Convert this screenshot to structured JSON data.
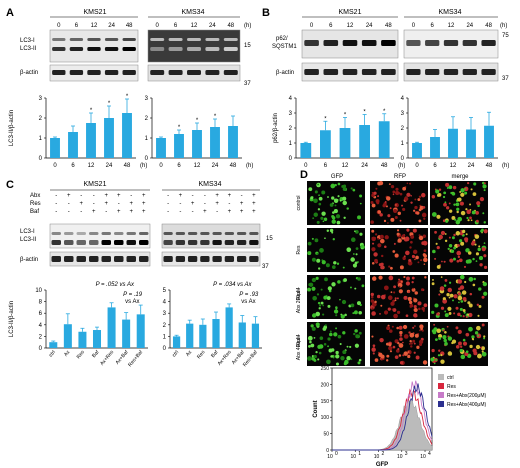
{
  "panel_labels": {
    "A": "A",
    "B": "B",
    "C": "C",
    "D": "D"
  },
  "colors": {
    "bar": "#29a9e0",
    "axis": "#000000",
    "res": "#d7263d",
    "abx200": "#c77bc8",
    "abx400": "#2b2f8f",
    "ctrl": "#bbbbbb"
  },
  "blots": {
    "A": {
      "cell1": "KMS21",
      "cell2": "KMS34",
      "lanes": [
        "0",
        "6",
        "12",
        "24",
        "48"
      ],
      "time_unit": "(h)",
      "band1": "LC3-I",
      "band2": "LC3-II",
      "band3": "β-actin",
      "mw1": "15",
      "mw2": "37"
    },
    "B": {
      "cell1": "KMS21",
      "cell2": "KMS34",
      "lanes": [
        "0",
        "6",
        "12",
        "24",
        "48"
      ],
      "time_unit": "(h)",
      "band1": "p62/",
      "band1b": "SQSTM1",
      "band2": "β-actin",
      "mw1": "75",
      "mw2": "37"
    },
    "C": {
      "cell1": "KMS21",
      "cell2": "KMS34",
      "rows": [
        {
          "label": "Abx",
          "signs": [
            "-",
            "+",
            "-",
            "-",
            "+",
            "+",
            "-",
            "+"
          ]
        },
        {
          "label": "Res",
          "signs": [
            "-",
            "-",
            "+",
            "-",
            "+",
            "-",
            "+",
            "+"
          ]
        },
        {
          "label": "Baf",
          "signs": [
            "-",
            "-",
            "-",
            "+",
            "-",
            "+",
            "+",
            "+"
          ]
        }
      ],
      "band1": "LC3-I",
      "band2": "LC3-II",
      "band3": "β-actin",
      "mw1": "15",
      "mw2": "37"
    }
  },
  "chart_data": [
    {
      "id": "A-KMS21",
      "type": "bar",
      "categories": [
        "0",
        "6",
        "12",
        "24",
        "48"
      ],
      "values": [
        1.0,
        1.3,
        1.75,
        2.0,
        2.25
      ],
      "errors": [
        0.05,
        0.3,
        0.5,
        0.6,
        0.7
      ],
      "stars": [
        "",
        "",
        "*",
        "*",
        "*"
      ],
      "ylabel": "LC3-II/β-actin",
      "ylim": [
        0,
        3
      ],
      "yticks": [
        "0",
        "1",
        "2",
        "3"
      ],
      "unit": "(h)"
    },
    {
      "id": "A-KMS34",
      "type": "bar",
      "categories": [
        "0",
        "6",
        "12",
        "24",
        "48"
      ],
      "values": [
        1.0,
        1.2,
        1.4,
        1.55,
        1.6
      ],
      "errors": [
        0.05,
        0.2,
        0.35,
        0.4,
        0.5
      ],
      "stars": [
        "",
        "*",
        "*",
        "*",
        ""
      ],
      "ylabel": "",
      "ylim": [
        0,
        3
      ],
      "yticks": [
        "0",
        "1",
        "2",
        "3"
      ],
      "unit": "(h)"
    },
    {
      "id": "B-KMS21",
      "type": "bar",
      "categories": [
        "0",
        "6",
        "12",
        "24",
        "48"
      ],
      "values": [
        1.0,
        1.85,
        2.0,
        2.2,
        2.45
      ],
      "errors": [
        0.05,
        0.6,
        0.7,
        0.7,
        0.5
      ],
      "stars": [
        "",
        "*",
        "*",
        "*",
        "*"
      ],
      "ylabel": "p62/β-actin",
      "ylim": [
        0,
        4
      ],
      "yticks": [
        "0",
        "1",
        "2",
        "3",
        "4"
      ],
      "unit": "(h)"
    },
    {
      "id": "B-KMS34",
      "type": "bar",
      "categories": [
        "0",
        "6",
        "12",
        "24",
        "48"
      ],
      "values": [
        1.0,
        1.4,
        1.95,
        1.9,
        2.15
      ],
      "errors": [
        0.05,
        0.5,
        0.8,
        0.8,
        0.9
      ],
      "stars": [
        "",
        "",
        "",
        "",
        ""
      ],
      "ylabel": "",
      "ylim": [
        0,
        4
      ],
      "yticks": [
        "0",
        "1",
        "2",
        "3",
        "4"
      ],
      "unit": "(h)"
    },
    {
      "id": "C-KMS21",
      "type": "bar",
      "categories": [
        "ctrl",
        "Ax",
        "Res",
        "Baf",
        "Ax+Res",
        "Ax+Baf",
        "Res+Baf"
      ],
      "values": [
        1.0,
        4.1,
        2.8,
        3.1,
        7.0,
        4.9,
        5.8
      ],
      "errors": [
        0.2,
        1.8,
        0.6,
        0.5,
        0.8,
        1.2,
        1.6
      ],
      "stars": [
        "",
        "",
        "",
        "",
        "",
        "",
        ""
      ],
      "ylabel": "LC3-II/β-actin",
      "ylim": [
        0,
        10
      ],
      "yticks": [
        "0",
        "2",
        "4",
        "6",
        "8",
        "10"
      ],
      "annotations": [
        {
          "text": "P = .052 vs Ax",
          "cat": 4
        },
        {
          "text": "P = .19",
          "cat": 5
        },
        {
          "text": "vs Ax",
          "cat": 5
        }
      ]
    },
    {
      "id": "C-KMS34",
      "type": "bar",
      "categories": [
        "ctrl",
        "Ax",
        "Res",
        "Baf",
        "Ax+Res",
        "Ax+Baf",
        "Res+Baf"
      ],
      "values": [
        1.0,
        2.1,
        2.0,
        2.5,
        3.5,
        2.2,
        2.1
      ],
      "errors": [
        0.1,
        0.3,
        0.5,
        0.6,
        0.3,
        0.6,
        0.6
      ],
      "stars": [
        "",
        "",
        "",
        "",
        "",
        "",
        ""
      ],
      "ylabel": "",
      "ylim": [
        0,
        5
      ],
      "yticks": [
        "0",
        "1",
        "2",
        "3",
        "4",
        "5"
      ],
      "annotations": [
        {
          "text": "P = .034 vs Ax",
          "cat": 4
        },
        {
          "text": "P = .93",
          "cat": 5
        },
        {
          "text": "vs Ax",
          "cat": 5
        }
      ]
    },
    {
      "id": "D-flow",
      "type": "area",
      "xlabel": "GFP",
      "ylabel": "Count",
      "ylim": [
        0,
        250
      ],
      "yticks": [
        "0",
        "50",
        "100",
        "150",
        "200",
        "250"
      ],
      "xticks": [
        "10",
        "10",
        "10",
        "10",
        "10"
      ],
      "xtick_exp": [
        "0",
        "1",
        "2",
        "3",
        "4"
      ],
      "series": [
        {
          "name": "ctrl",
          "peak_log": 3.35,
          "peak": 150,
          "width": 0.42
        },
        {
          "name": "Res",
          "peak_log": 3.45,
          "peak": 175,
          "width": 0.4
        },
        {
          "name": "Res+Abx(200μM)",
          "peak_log": 3.55,
          "peak": 200,
          "width": 0.38
        },
        {
          "name": "Res+Abx(400μM)",
          "peak_log": 3.65,
          "peak": 190,
          "width": 0.38
        }
      ]
    }
  ],
  "microscopy": {
    "headers": [
      "GFP",
      "RFP",
      "merge"
    ],
    "rows": [
      "control",
      "Res",
      "Res + Abx 200μM",
      "Res + Abx 400μM"
    ],
    "rows_lines": [
      [
        "control"
      ],
      [
        "Res"
      ],
      [
        "Res +",
        "Abx 200μM"
      ],
      [
        "Res +",
        "Abx 400μM"
      ]
    ]
  }
}
